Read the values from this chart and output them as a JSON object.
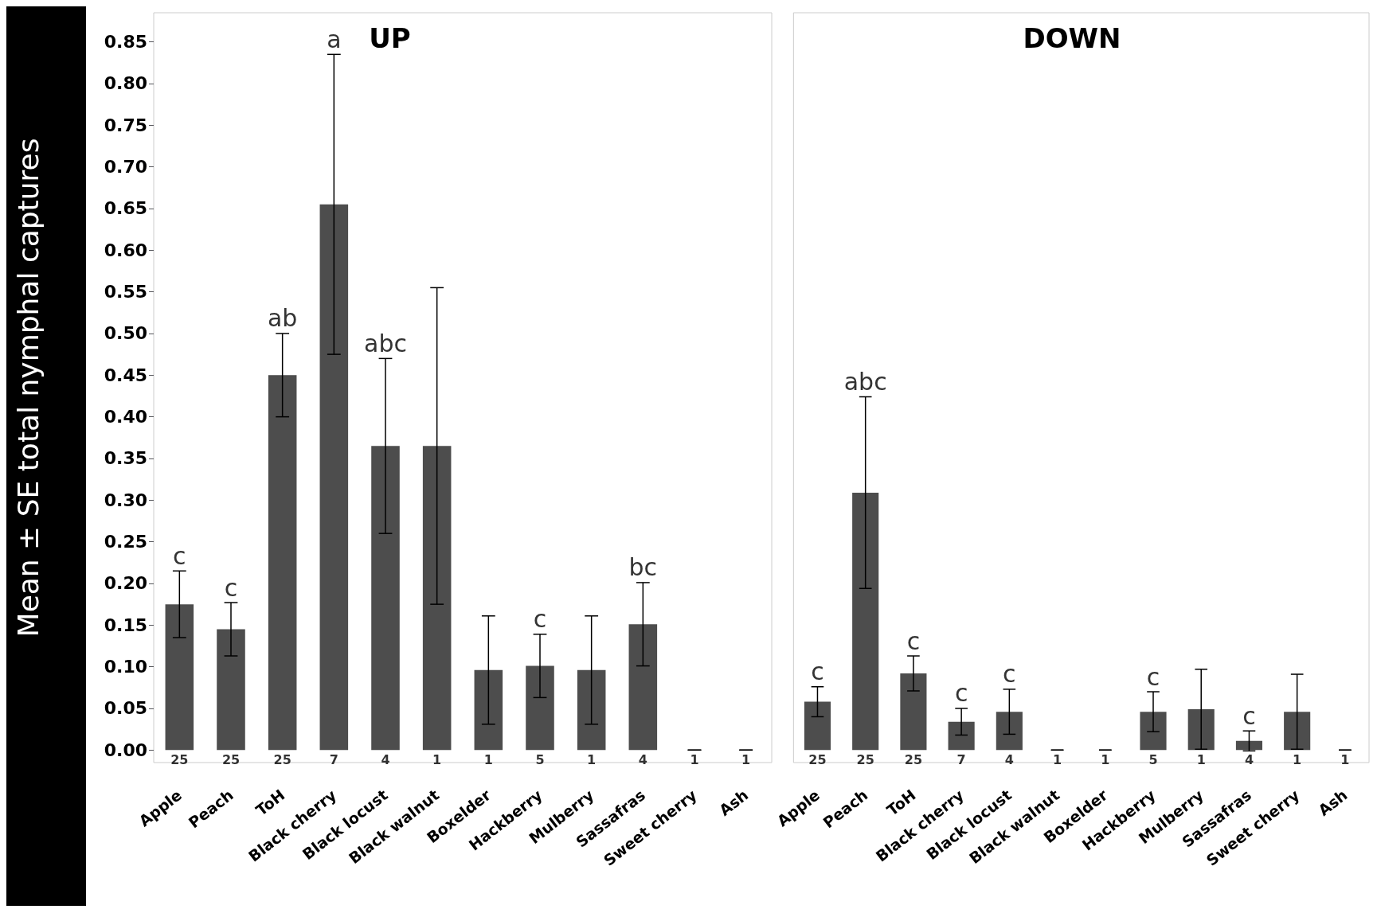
{
  "chart_data": [
    {
      "type": "bar",
      "title": "UP",
      "ylabel": "Mean ± SE total nymphal captures",
      "color": "#4d4d4d",
      "categories": [
        "Apple",
        "Peach",
        "ToH",
        "Black cherry",
        "Black locust",
        "Black walnut",
        "Boxelder",
        "Hackberry",
        "Mulberry",
        "Sassafras",
        "Sweet cherry",
        "Ash"
      ],
      "values": [
        0.175,
        0.145,
        0.45,
        0.655,
        0.365,
        0.365,
        0.096,
        0.101,
        0.096,
        0.151,
        0,
        0
      ],
      "errors": [
        0.04,
        0.032,
        0.05,
        0.18,
        0.105,
        0.19,
        0.065,
        0.038,
        0.065,
        0.05,
        0,
        0
      ],
      "ylim": [
        -0.015,
        0.885
      ],
      "yticks": [
        {
          "value": 0,
          "label": "0.00"
        },
        {
          "value": 0.05,
          "label": "0.05"
        },
        {
          "value": 0.1,
          "label": "0.10"
        },
        {
          "value": 0.15,
          "label": "0.15"
        },
        {
          "value": 0.2,
          "label": "0.20"
        },
        {
          "value": 0.25,
          "label": "0.25"
        },
        {
          "value": 0.3,
          "label": "0.30"
        },
        {
          "value": 0.35,
          "label": "0.35"
        },
        {
          "value": 0.4,
          "label": "0.40"
        },
        {
          "value": 0.45,
          "label": "0.45"
        },
        {
          "value": 0.5,
          "label": "0.50"
        },
        {
          "value": 0.55,
          "label": "0.55"
        },
        {
          "value": 0.6,
          "label": "0.60"
        },
        {
          "value": 0.65,
          "label": "0.65"
        },
        {
          "value": 0.7,
          "label": "0.70"
        },
        {
          "value": 0.75,
          "label": "0.75"
        },
        {
          "value": 0.8,
          "label": "0.80"
        },
        {
          "value": 0.85,
          "label": "0.85"
        }
      ],
      "annotations": [
        {
          "text": "c",
          "x": "Apple",
          "y": 0.215
        },
        {
          "text": "c",
          "x": "Peach",
          "y": 0.177
        },
        {
          "text": "ab",
          "x": "ToH",
          "y": 0.5
        },
        {
          "text": "a",
          "x": "Black cherry",
          "y": 0.835
        },
        {
          "text": "abc",
          "x": "Black locust",
          "y": 0.47
        },
        {
          "text": "c",
          "x": "Hackberry",
          "y": 0.139
        },
        {
          "text": "bc",
          "x": "Sassafras",
          "y": 0.201
        },
        {
          "text": "25",
          "x": "Apple",
          "y": 0
        },
        {
          "text": "25",
          "x": "Peach",
          "y": 0
        },
        {
          "text": "25",
          "x": "ToH",
          "y": 0
        },
        {
          "text": "7",
          "x": "Black cherry",
          "y": 0
        },
        {
          "text": "4",
          "x": "Black locust",
          "y": 0
        },
        {
          "text": "1",
          "x": "Black walnut",
          "y": 0
        },
        {
          "text": "1",
          "x": "Boxelder",
          "y": 0
        },
        {
          "text": "5",
          "x": "Hackberry",
          "y": 0
        },
        {
          "text": "1",
          "x": "Mulberry",
          "y": 0
        },
        {
          "text": "4",
          "x": "Sassafras",
          "y": 0
        },
        {
          "text": "1",
          "x": "Sweet cherry",
          "y": 0
        },
        {
          "text": "1",
          "x": "Ash",
          "y": 0
        }
      ]
    },
    {
      "type": "bar",
      "title": "DOWN",
      "color": "#4d4d4d",
      "tick_labels": "x",
      "categories": [
        "Apple",
        "Peach",
        "ToH",
        "Black cherry",
        "Black locust",
        "Black walnut",
        "Boxelder",
        "Hackberry",
        "Mulberry",
        "Sassafras",
        "Sweet cherry",
        "Ash"
      ],
      "values": [
        0.058,
        0.309,
        0.092,
        0.034,
        0.046,
        0,
        0,
        0.046,
        0.049,
        0.011,
        0.046,
        0
      ],
      "errors": [
        0.018,
        0.115,
        0.021,
        0.016,
        0.027,
        0,
        0,
        0.024,
        0.048,
        0.012,
        0.045,
        0
      ],
      "ylim": [
        -0.015,
        0.885
      ],
      "annotations": [
        {
          "text": "c",
          "x": "Apple",
          "y": 0.076
        },
        {
          "text": "abc",
          "x": "Peach",
          "y": 0.424
        },
        {
          "text": "c",
          "x": "ToH",
          "y": 0.113
        },
        {
          "text": "c",
          "x": "Black cherry",
          "y": 0.05
        },
        {
          "text": "c",
          "x": "Black locust",
          "y": 0.073
        },
        {
          "text": "c",
          "x": "Hackberry",
          "y": 0.07
        },
        {
          "text": "c",
          "x": "Sassafras",
          "y": 0.023
        },
        {
          "text": "25",
          "x": "Apple",
          "y": 0
        },
        {
          "text": "25",
          "x": "Peach",
          "y": 0
        },
        {
          "text": "25",
          "x": "ToH",
          "y": 0
        },
        {
          "text": "7",
          "x": "Black cherry",
          "y": 0
        },
        {
          "text": "4",
          "x": "Black locust",
          "y": 0
        },
        {
          "text": "1",
          "x": "Black walnut",
          "y": 0
        },
        {
          "text": "1",
          "x": "Boxelder",
          "y": 0
        },
        {
          "text": "5",
          "x": "Hackberry",
          "y": 0
        },
        {
          "text": "1",
          "x": "Mulberry",
          "y": 0
        },
        {
          "text": "4",
          "x": "Sassafras",
          "y": 0
        },
        {
          "text": "1",
          "x": "Sweet cherry",
          "y": 0
        },
        {
          "text": "1",
          "x": "Ash",
          "y": 0
        }
      ]
    }
  ]
}
